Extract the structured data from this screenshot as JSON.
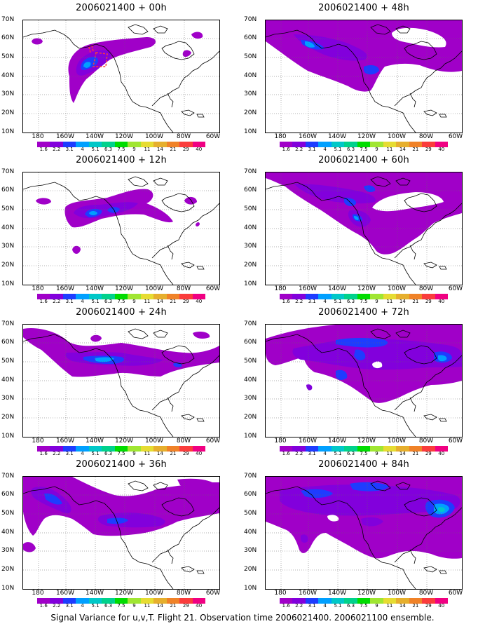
{
  "caption": "Signal Variance for u,v,T. Flight 21. Observation time 2006021400. 2006021100 ensemble.",
  "lat_labels": [
    "70N",
    "60N",
    "50N",
    "40N",
    "30N",
    "20N",
    "10N"
  ],
  "lon_labels": [
    "180",
    "160W",
    "140W",
    "120W",
    "100W",
    "80W",
    "60W"
  ],
  "colorbar": {
    "colors": [
      "#a000c8",
      "#8200dc",
      "#1e3cff",
      "#00a0ff",
      "#00c8c8",
      "#00d28c",
      "#00dc00",
      "#a0e632",
      "#e6dc32",
      "#e6af2d",
      "#f08228",
      "#fa3c3c",
      "#f00082"
    ],
    "labels": [
      "1.6",
      "2.2",
      "3.1",
      "4",
      "5.1",
      "6.3",
      "7.5",
      "9",
      "11",
      "14",
      "21",
      "29",
      "40"
    ]
  },
  "panels": [
    {
      "id": "p00",
      "title": "2006021400 + 00h"
    },
    {
      "id": "p48",
      "title": "2006021400 + 48h"
    },
    {
      "id": "p12",
      "title": "2006021400 + 12h"
    },
    {
      "id": "p60",
      "title": "2006021400 + 60h"
    },
    {
      "id": "p24",
      "title": "2006021400 + 24h"
    },
    {
      "id": "p72",
      "title": "2006021400 + 72h"
    },
    {
      "id": "p36",
      "title": "2006021400 + 36h"
    },
    {
      "id": "p84",
      "title": "2006021400 + 84h"
    }
  ]
}
